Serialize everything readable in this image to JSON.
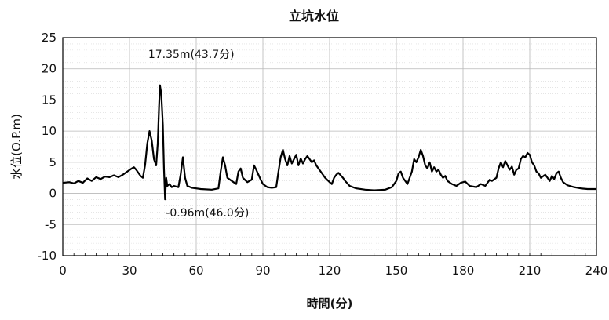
{
  "chart_data": {
    "type": "line",
    "title": "立坑水位",
    "xlabel": "時間(分)",
    "ylabel": "水位(O.P.m)",
    "xlim": [
      0,
      240
    ],
    "ylim": [
      -10,
      25
    ],
    "xticks": [
      "0",
      "30",
      "60",
      "90",
      "120",
      "150",
      "180",
      "210",
      "240"
    ],
    "yticks": [
      "25",
      "20",
      "15",
      "10",
      "5",
      "0",
      "-5",
      "-10"
    ],
    "grid": true,
    "line_color": "#000000",
    "annotations": [
      {
        "text": "17.35m(43.7分)",
        "x": 43.7,
        "y": 17.35
      },
      {
        "text": "-0.96m(46.0分)",
        "x": 46.0,
        "y": -0.96
      }
    ],
    "series": [
      {
        "points": [
          [
            0,
            1.7
          ],
          [
            3,
            1.8
          ],
          [
            5,
            1.6
          ],
          [
            7,
            2.0
          ],
          [
            9,
            1.7
          ],
          [
            11,
            2.4
          ],
          [
            13,
            2.0
          ],
          [
            15,
            2.6
          ],
          [
            17,
            2.3
          ],
          [
            19,
            2.7
          ],
          [
            21,
            2.6
          ],
          [
            23,
            2.9
          ],
          [
            25,
            2.6
          ],
          [
            27,
            3.0
          ],
          [
            29,
            3.5
          ],
          [
            31,
            4.0
          ],
          [
            32,
            4.2
          ],
          [
            33,
            3.8
          ],
          [
            35,
            2.8
          ],
          [
            36,
            2.5
          ],
          [
            37,
            4.5
          ],
          [
            38,
            8.0
          ],
          [
            39,
            10.0
          ],
          [
            40,
            8.5
          ],
          [
            41,
            5.5
          ],
          [
            42,
            4.5
          ],
          [
            42.7,
            8.0
          ],
          [
            43.3,
            14.0
          ],
          [
            43.7,
            17.35
          ],
          [
            44.3,
            16.0
          ],
          [
            45,
            11.0
          ],
          [
            45.5,
            4.0
          ],
          [
            46.0,
            -0.96
          ],
          [
            46.5,
            2.5
          ],
          [
            47,
            1.2
          ],
          [
            48,
            1.5
          ],
          [
            49,
            1.0
          ],
          [
            50,
            1.2
          ],
          [
            52,
            1.0
          ],
          [
            53,
            3.0
          ],
          [
            54,
            5.8
          ],
          [
            55,
            2.5
          ],
          [
            56,
            1.2
          ],
          [
            58,
            0.9
          ],
          [
            62,
            0.7
          ],
          [
            67,
            0.6
          ],
          [
            70,
            0.8
          ],
          [
            71,
            3.5
          ],
          [
            72,
            5.8
          ],
          [
            73,
            4.5
          ],
          [
            74,
            2.5
          ],
          [
            76,
            2.0
          ],
          [
            78,
            1.5
          ],
          [
            79,
            3.5
          ],
          [
            80,
            4.0
          ],
          [
            81,
            2.5
          ],
          [
            83,
            1.8
          ],
          [
            85,
            2.2
          ],
          [
            86,
            4.5
          ],
          [
            87,
            3.8
          ],
          [
            88,
            3.0
          ],
          [
            89,
            2.2
          ],
          [
            90,
            1.5
          ],
          [
            92,
            1.0
          ],
          [
            94,
            0.9
          ],
          [
            96,
            1.0
          ],
          [
            97,
            3.5
          ],
          [
            98,
            5.8
          ],
          [
            99,
            7.0
          ],
          [
            100,
            5.5
          ],
          [
            101,
            4.5
          ],
          [
            102,
            6.0
          ],
          [
            103,
            4.8
          ],
          [
            104,
            5.5
          ],
          [
            105,
            6.2
          ],
          [
            106,
            4.5
          ],
          [
            107,
            5.6
          ],
          [
            108,
            4.8
          ],
          [
            109,
            5.5
          ],
          [
            110,
            6.0
          ],
          [
            111,
            5.5
          ],
          [
            112,
            5.0
          ],
          [
            113,
            5.3
          ],
          [
            114,
            4.5
          ],
          [
            115,
            4.0
          ],
          [
            116,
            3.5
          ],
          [
            117,
            3.0
          ],
          [
            118,
            2.5
          ],
          [
            120,
            1.8
          ],
          [
            121,
            1.5
          ],
          [
            122,
            2.5
          ],
          [
            123,
            3.0
          ],
          [
            124,
            3.3
          ],
          [
            126,
            2.5
          ],
          [
            127,
            2.0
          ],
          [
            129,
            1.2
          ],
          [
            132,
            0.8
          ],
          [
            136,
            0.6
          ],
          [
            140,
            0.5
          ],
          [
            145,
            0.6
          ],
          [
            148,
            1.0
          ],
          [
            150,
            2.0
          ],
          [
            151,
            3.2
          ],
          [
            152,
            3.5
          ],
          [
            153,
            2.5
          ],
          [
            155,
            1.5
          ],
          [
            157,
            3.5
          ],
          [
            158,
            5.5
          ],
          [
            159,
            5.0
          ],
          [
            160,
            5.8
          ],
          [
            161,
            7.0
          ],
          [
            162,
            6.0
          ],
          [
            163,
            4.5
          ],
          [
            164,
            4.0
          ],
          [
            165,
            5.0
          ],
          [
            166,
            3.5
          ],
          [
            167,
            4.2
          ],
          [
            168,
            3.5
          ],
          [
            169,
            3.8
          ],
          [
            170,
            3.0
          ],
          [
            171,
            2.5
          ],
          [
            172,
            2.8
          ],
          [
            173,
            2.0
          ],
          [
            175,
            1.5
          ],
          [
            177,
            1.2
          ],
          [
            179,
            1.7
          ],
          [
            181,
            1.9
          ],
          [
            183,
            1.2
          ],
          [
            186,
            1.0
          ],
          [
            188,
            1.5
          ],
          [
            190,
            1.2
          ],
          [
            192,
            2.2
          ],
          [
            193,
            2.0
          ],
          [
            195,
            2.5
          ],
          [
            196,
            4.0
          ],
          [
            197,
            5.0
          ],
          [
            198,
            4.2
          ],
          [
            199,
            5.2
          ],
          [
            200,
            4.5
          ],
          [
            201,
            3.8
          ],
          [
            202,
            4.3
          ],
          [
            203,
            3.0
          ],
          [
            204,
            3.8
          ],
          [
            205,
            4.0
          ],
          [
            206,
            5.5
          ],
          [
            207,
            6.0
          ],
          [
            208,
            5.8
          ],
          [
            209,
            6.5
          ],
          [
            210,
            6.2
          ],
          [
            211,
            5.0
          ],
          [
            212,
            4.5
          ],
          [
            213,
            3.5
          ],
          [
            214,
            3.2
          ],
          [
            215,
            2.5
          ],
          [
            217,
            3.0
          ],
          [
            218,
            2.5
          ],
          [
            219,
            2.0
          ],
          [
            220,
            2.8
          ],
          [
            221,
            2.3
          ],
          [
            222,
            3.2
          ],
          [
            223,
            3.5
          ],
          [
            224,
            2.5
          ],
          [
            225,
            1.8
          ],
          [
            227,
            1.3
          ],
          [
            230,
            1.0
          ],
          [
            233,
            0.8
          ],
          [
            236,
            0.7
          ],
          [
            240,
            0.7
          ]
        ]
      }
    ]
  }
}
